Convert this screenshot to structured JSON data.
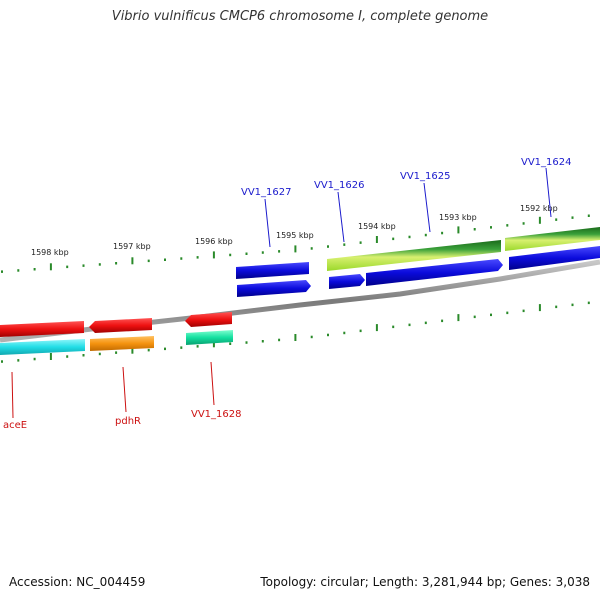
{
  "title": "Vibrio vulnificus CMCP6 chromosome I, complete genome",
  "footer": {
    "accession": "Accession: NC_004459",
    "topology": "Topology: circular; Length: 3,281,944 bp; Genes: 3,038"
  },
  "ruler_labels": [
    "1598 kbp",
    "1597 kbp",
    "1596 kbp",
    "1595 kbp",
    "1594 kbp",
    "1593 kbp",
    "1592 kbp"
  ],
  "gene_labels": [
    {
      "name": "VV1_1627",
      "color": "#1a1acc"
    },
    {
      "name": "VV1_1626",
      "color": "#1a1acc"
    },
    {
      "name": "VV1_1625",
      "color": "#1a1acc"
    },
    {
      "name": "VV1_1624",
      "color": "#1a1acc"
    },
    {
      "name": "aceE",
      "color": "#cc1111"
    },
    {
      "name": "pdhR",
      "color": "#cc1111"
    },
    {
      "name": "VV1_1628",
      "color": "#cc1111"
    }
  ],
  "colors": {
    "blue": "#0b0bdc",
    "red": "#ee1111",
    "cyan": "#22dde6",
    "orange": "#f5930f",
    "teal": "#14e0a0",
    "dark_green": "#2a8c28",
    "light_green": "#b8ee3a",
    "tick": "#2a8a2a",
    "backbone": "#888888"
  }
}
